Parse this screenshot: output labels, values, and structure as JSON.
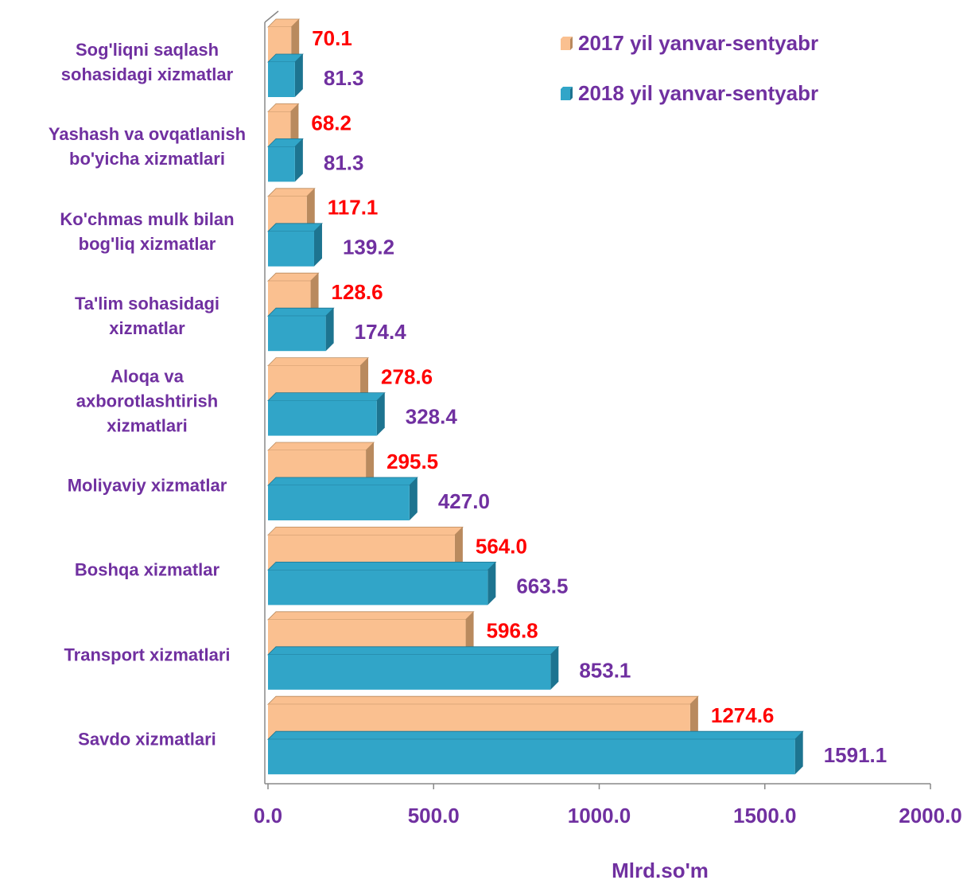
{
  "chart_data": {
    "type": "bar",
    "orientation": "horizontal",
    "x_label": "Mlrd.so'm",
    "categories": [
      "Sog'liqni saqlash\nsohasidagi xizmatlar",
      "Yashash va ovqatlanish\nbo'yicha xizmatlari",
      "Ko'chmas mulk bilan\nbog'liq xizmatlar",
      "Ta'lim sohasidagi\nxizmatlar",
      "Aloqa va\naxborotlashtirish\nxizmatlari",
      "Moliyaviy xizmatlar",
      "Boshqa xizmatlar",
      "Transport xizmatlari",
      "Savdo xizmatlari"
    ],
    "series": [
      {
        "name": "2017 yil yanvar-sentyabr",
        "color": "#fac090",
        "side_color": "#b98a5e",
        "label_color": "#ff0000",
        "values": [
          70.1,
          68.2,
          117.1,
          128.6,
          278.6,
          295.5,
          564.0,
          596.8,
          1274.6
        ],
        "value_labels": [
          "70.1",
          "68.2",
          "117.1",
          "128.6",
          "278.6",
          "295.5",
          "564.0",
          "596.8",
          "1274.6"
        ]
      },
      {
        "name": "2018 yil yanvar-sentyabr",
        "color": "#31a5c8",
        "side_color": "#1d7490",
        "label_color": "#7030a0",
        "values": [
          81.3,
          81.3,
          139.2,
          174.4,
          328.4,
          427.0,
          663.5,
          853.1,
          1591.1
        ],
        "value_labels": [
          "81.3",
          "81.3",
          "139.2",
          "174.4",
          "328.4",
          "427.0",
          "663.5",
          "853.1",
          "1591.1"
        ]
      }
    ],
    "xlim": [
      0,
      2000
    ],
    "xticks": [
      {
        "value": 0,
        "label": "0.0"
      },
      {
        "value": 500,
        "label": "500.0"
      },
      {
        "value": 1000,
        "label": "1000.0"
      },
      {
        "value": 1500,
        "label": "1500.0"
      },
      {
        "value": 2000,
        "label": "2000.0"
      }
    ],
    "legend": "top-right",
    "grid": false
  }
}
